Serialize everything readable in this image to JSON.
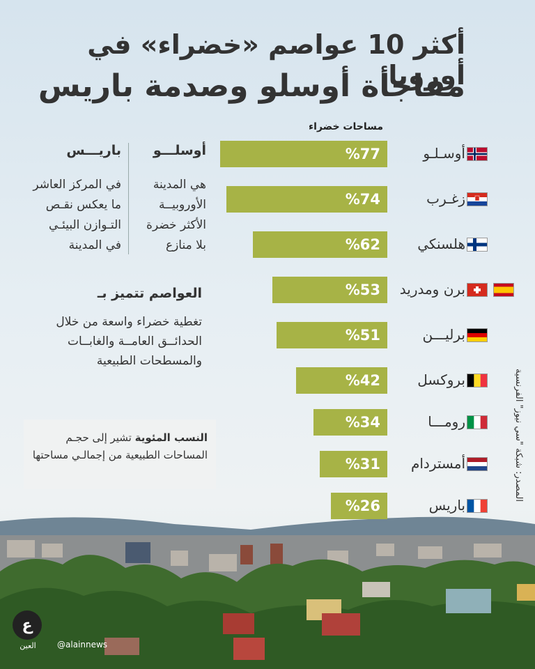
{
  "header": {
    "title_line1": "أكثر 10 عواصم «خضراء» في أوروبا",
    "title_line2": "مفاجأة أوسلو وصدمة باريس"
  },
  "chart_data": {
    "type": "bar",
    "orientation": "horizontal",
    "title": "أكثر 10 عواصم «خضراء» في أوروبا",
    "axis_label": "مساحات خضراء",
    "categories": [
      "أوسـلـو",
      "زغـرب",
      "هلسنكي",
      "برن ومدريد",
      "برليـــن",
      "بروكسل",
      "رومـــا",
      "أمستردام",
      "باريس"
    ],
    "values": [
      77,
      74,
      62,
      53,
      51,
      42,
      34,
      31,
      26
    ],
    "value_labels": [
      "%77",
      "%74",
      "%62",
      "%53",
      "%51",
      "%42",
      "%34",
      "%31",
      "%26"
    ],
    "value_suffix": "%",
    "ylim": [
      0,
      100
    ],
    "bar_color": "#a7b346",
    "flags": [
      [
        "norway-flag-icon"
      ],
      [
        "croatia-flag-icon"
      ],
      [
        "finland-flag-icon"
      ],
      [
        "switzerland-flag-icon",
        "spain-flag-icon"
      ],
      [
        "germany-flag-icon"
      ],
      [
        "belgium-flag-icon"
      ],
      [
        "italy-flag-icon"
      ],
      [
        "netherlands-flag-icon"
      ],
      [
        "france-flag-icon"
      ]
    ]
  },
  "oslo_box": {
    "heading": "أوسلـــو",
    "lines": [
      "هي المدينة",
      "الأوروبيــة",
      "الأكثر خضرة",
      "بلا منازع"
    ]
  },
  "paris_box": {
    "heading": "باريـــس",
    "lines": [
      "في المركز العاشر",
      "ما يعكس نقـص",
      "التـوازن البيئـي",
      "في المدينة"
    ]
  },
  "features": {
    "title": "العواصم تتميز بـ",
    "lines": [
      "تغطية خضراء واسعة من خلال",
      "الحدائــق العامــة والغابــات",
      "والمسطحات الطبيعية"
    ]
  },
  "note": {
    "bold": "النسب المئوية",
    "text": "تشير إلى حجـم المساحات الطبيعية من إجمالـي مساحتها"
  },
  "source": "المصدر: شبكة \"سي نيوز\" الفرنسية",
  "logo": {
    "mark": "ع",
    "name": "العين"
  },
  "handle": "@alainnews",
  "colors": {
    "bar": "#a7b346",
    "text": "#333333"
  }
}
